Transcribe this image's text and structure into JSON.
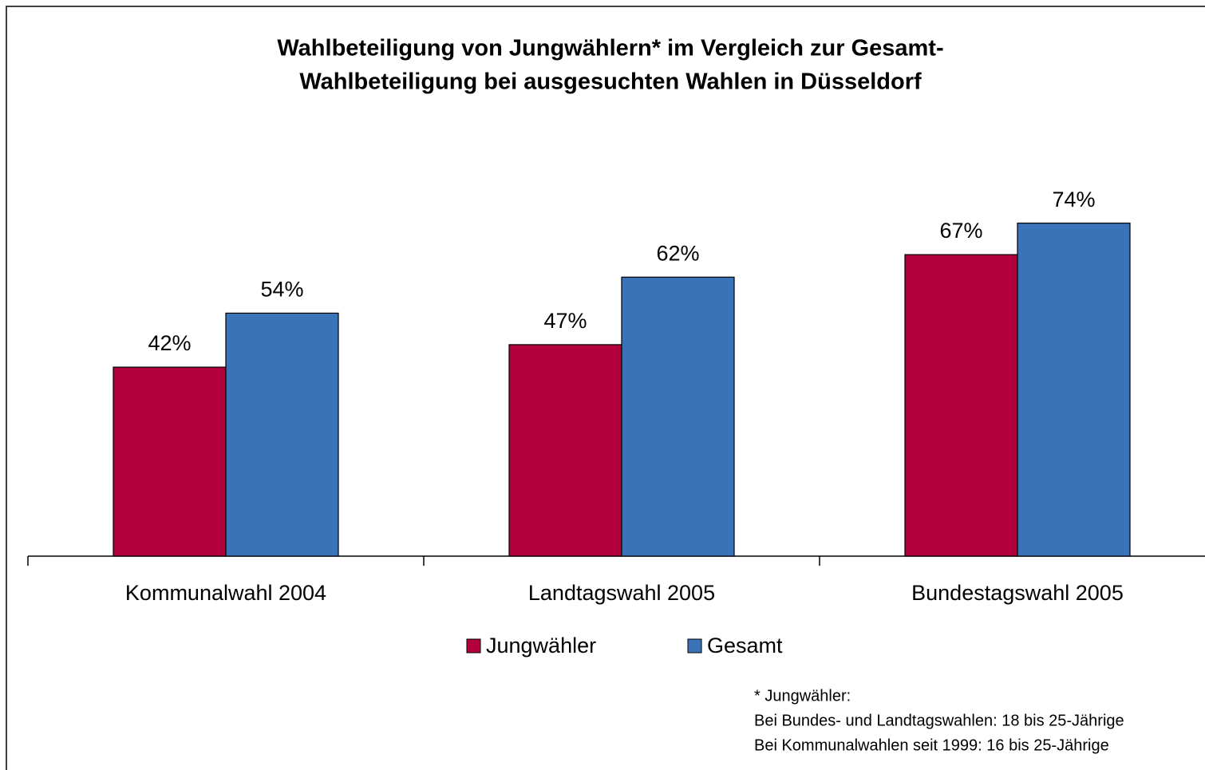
{
  "chart_data": {
    "type": "bar",
    "title": [
      "Wahlbeteiligung von Jungwählern* im Vergleich zur Gesamt-",
      "Wahlbeteiligung bei ausgesuchten Wahlen in Düsseldorf"
    ],
    "categories": [
      "Kommunalwahl 2004",
      "Landtagswahl 2005",
      "Bundestagswahl 2005"
    ],
    "series": [
      {
        "name": "Jungwähler",
        "color": "#b1003c",
        "values": [
          42,
          47,
          67
        ],
        "value_labels": [
          "42%",
          "47%",
          "67%"
        ]
      },
      {
        "name": "Gesamt",
        "color": "#3b73b9",
        "values": [
          54,
          62,
          74
        ],
        "value_labels": [
          "54%",
          "62%",
          "74%"
        ]
      }
    ],
    "footnote": [
      "* Jungwähler:",
      "Bei Bundes- und Landtagswahlen: 18 bis 25-Jährige",
      "Bei Kommunalwahlen seit 1999: 16 bis 25-Jährige"
    ]
  }
}
